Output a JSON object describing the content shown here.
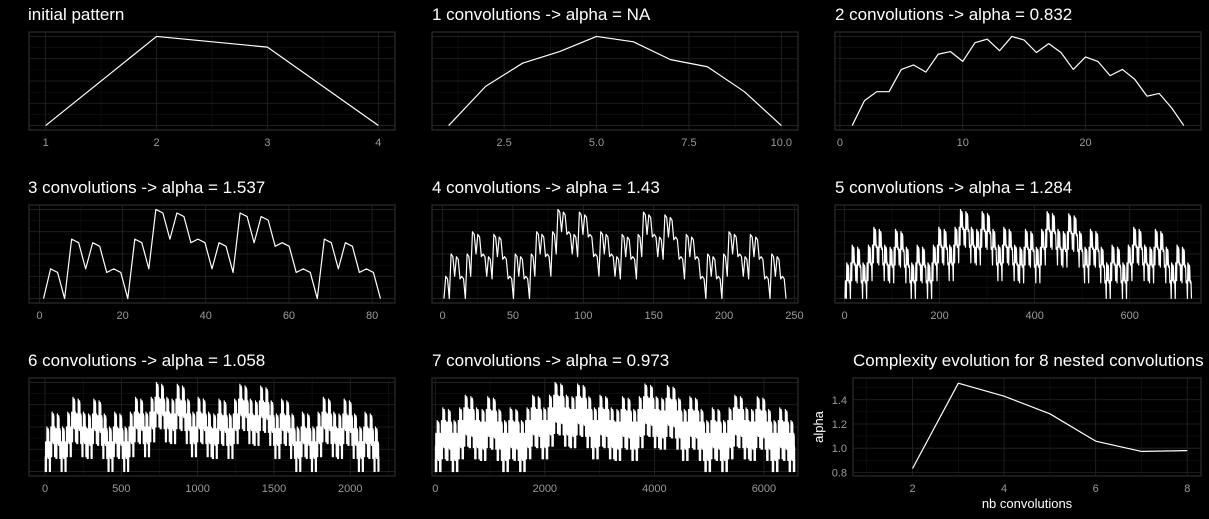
{
  "chart_data": [
    {
      "type": "line",
      "title": "initial pattern",
      "x": [
        1,
        2,
        3,
        4
      ],
      "y": [
        0.0,
        1.0,
        0.88,
        0.0
      ],
      "xlim": [
        0.85,
        4.15
      ],
      "xticks": [
        "1",
        "2",
        "3",
        "4"
      ],
      "grid": true
    },
    {
      "type": "line",
      "title": "1 convolutions -> alpha = NA",
      "x": [
        1,
        2,
        3,
        4,
        5,
        6,
        7,
        8,
        9,
        10
      ],
      "y": [
        0.0,
        0.44,
        0.7,
        0.83,
        1.0,
        0.94,
        0.74,
        0.66,
        0.38,
        0.0
      ],
      "xlim": [
        0.55,
        10.45
      ],
      "xticks": [
        "2.5",
        "5.0",
        "7.5",
        "10.0"
      ],
      "grid": true
    },
    {
      "type": "line",
      "title": "2 convolutions -> alpha = 0.832",
      "x": [
        1,
        2,
        3,
        4,
        5,
        6,
        7,
        8,
        9,
        10,
        11,
        12,
        13,
        14,
        15,
        16,
        17,
        18,
        19,
        20,
        21,
        22,
        23,
        24,
        25,
        26,
        27,
        28
      ],
      "y": [
        0.0,
        0.28,
        0.38,
        0.38,
        0.63,
        0.68,
        0.6,
        0.8,
        0.83,
        0.72,
        0.93,
        0.97,
        0.84,
        1.0,
        0.96,
        0.82,
        0.92,
        0.82,
        0.63,
        0.77,
        0.72,
        0.56,
        0.63,
        0.52,
        0.33,
        0.36,
        0.2,
        0.0
      ],
      "xlim": [
        -0.4,
        29.4
      ],
      "xticks": [
        "0",
        "10",
        "20"
      ],
      "grid": true
    },
    {
      "type": "line",
      "title": "3 convolutions -> alpha = 1.537",
      "xmax": 82,
      "xlim": [
        -2.5,
        85.5
      ],
      "xticks": [
        "0",
        "20",
        "40",
        "60",
        "80"
      ],
      "grid": true
    },
    {
      "type": "line",
      "title": "4 convolutions -> alpha = 1.43",
      "xmax": 244,
      "xlim": [
        -7.5,
        252.5
      ],
      "xticks": [
        "0",
        "50",
        "100",
        "150",
        "200",
        "250"
      ],
      "grid": true
    },
    {
      "type": "line",
      "title": "5 convolutions -> alpha = 1.284",
      "xmax": 730,
      "xlim": [
        -20,
        750
      ],
      "xticks": [
        "0",
        "200",
        "400",
        "600"
      ],
      "grid": true
    },
    {
      "type": "line",
      "title": "6 convolutions -> alpha = 1.058",
      "xmax": 2188,
      "xlim": [
        -105,
        2293
      ],
      "xticks": [
        "0",
        "500",
        "1000",
        "1500",
        "2000"
      ],
      "grid": true
    },
    {
      "type": "line",
      "title": "7 convolutions -> alpha = 0.973",
      "xmax": 6562,
      "xlim": [
        -60,
        6622
      ],
      "xticks": [
        "0",
        "2000",
        "4000",
        "6000"
      ],
      "grid": true
    },
    {
      "type": "line",
      "title": "Complexity evolution for 8 nested convolutions",
      "xlabel": "nb convolutions",
      "ylabel": "alpha",
      "x": [
        2,
        3,
        4,
        5,
        6,
        7,
        8
      ],
      "y": [
        0.832,
        1.537,
        1.43,
        1.284,
        1.058,
        0.973,
        0.98
      ],
      "xlim": [
        0.7,
        8.3
      ],
      "ylim": [
        0.77,
        1.58
      ],
      "xticks": [
        "2",
        "4",
        "6",
        "8"
      ],
      "yticks": [
        "0.8",
        "1.0",
        "1.2",
        "1.4"
      ],
      "grid": true
    }
  ]
}
